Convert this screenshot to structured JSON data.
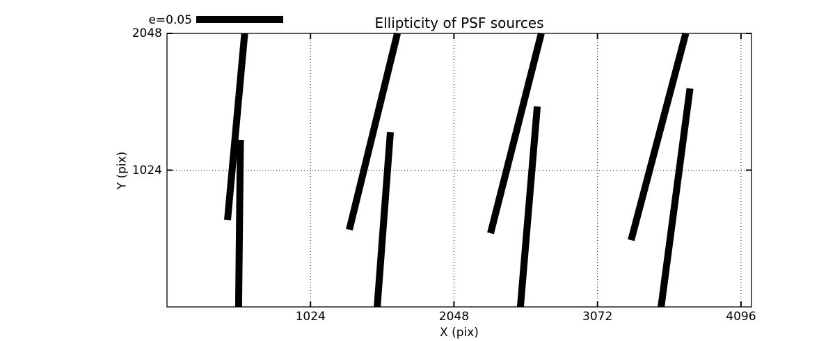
{
  "figure": {
    "title": "Ellipticity of PSF sources",
    "xlabel": "X (pix)",
    "ylabel": "Y (pix)",
    "legend_label": "e=0.05"
  },
  "colors": {
    "foreground": "#000000",
    "background": "#ffffff"
  },
  "chart_data": {
    "type": "line",
    "subtype": "ellipticity-whisker-sticks",
    "title": "Ellipticity of PSF sources",
    "xlabel": "X (pix)",
    "ylabel": "Y (pix)",
    "xlim": [
      0,
      4171
    ],
    "ylim": [
      0,
      2048
    ],
    "xticks": [
      1024,
      2048,
      3072,
      4096
    ],
    "yticks": [
      1024,
      2048
    ],
    "grid": true,
    "grid_style": "dotted",
    "legend": {
      "label": "e=0.05",
      "position": "upper-left",
      "scale_bar_length_data_units": 621
    },
    "sticks": [
      {
        "x1": 554,
        "y1": 2048,
        "x2": 432,
        "y2": 651
      },
      {
        "x1": 524,
        "y1": 1251,
        "x2": 511,
        "y2": 0
      },
      {
        "x1": 1644,
        "y1": 2048,
        "x2": 1301,
        "y2": 578
      },
      {
        "x1": 1594,
        "y1": 1308,
        "x2": 1500,
        "y2": 0
      },
      {
        "x1": 2671,
        "y1": 2048,
        "x2": 2309,
        "y2": 552
      },
      {
        "x1": 2642,
        "y1": 1501,
        "x2": 2522,
        "y2": 0
      },
      {
        "x1": 3702,
        "y1": 2048,
        "x2": 3312,
        "y2": 500
      },
      {
        "x1": 3732,
        "y1": 1636,
        "x2": 3526,
        "y2": 0
      }
    ]
  }
}
